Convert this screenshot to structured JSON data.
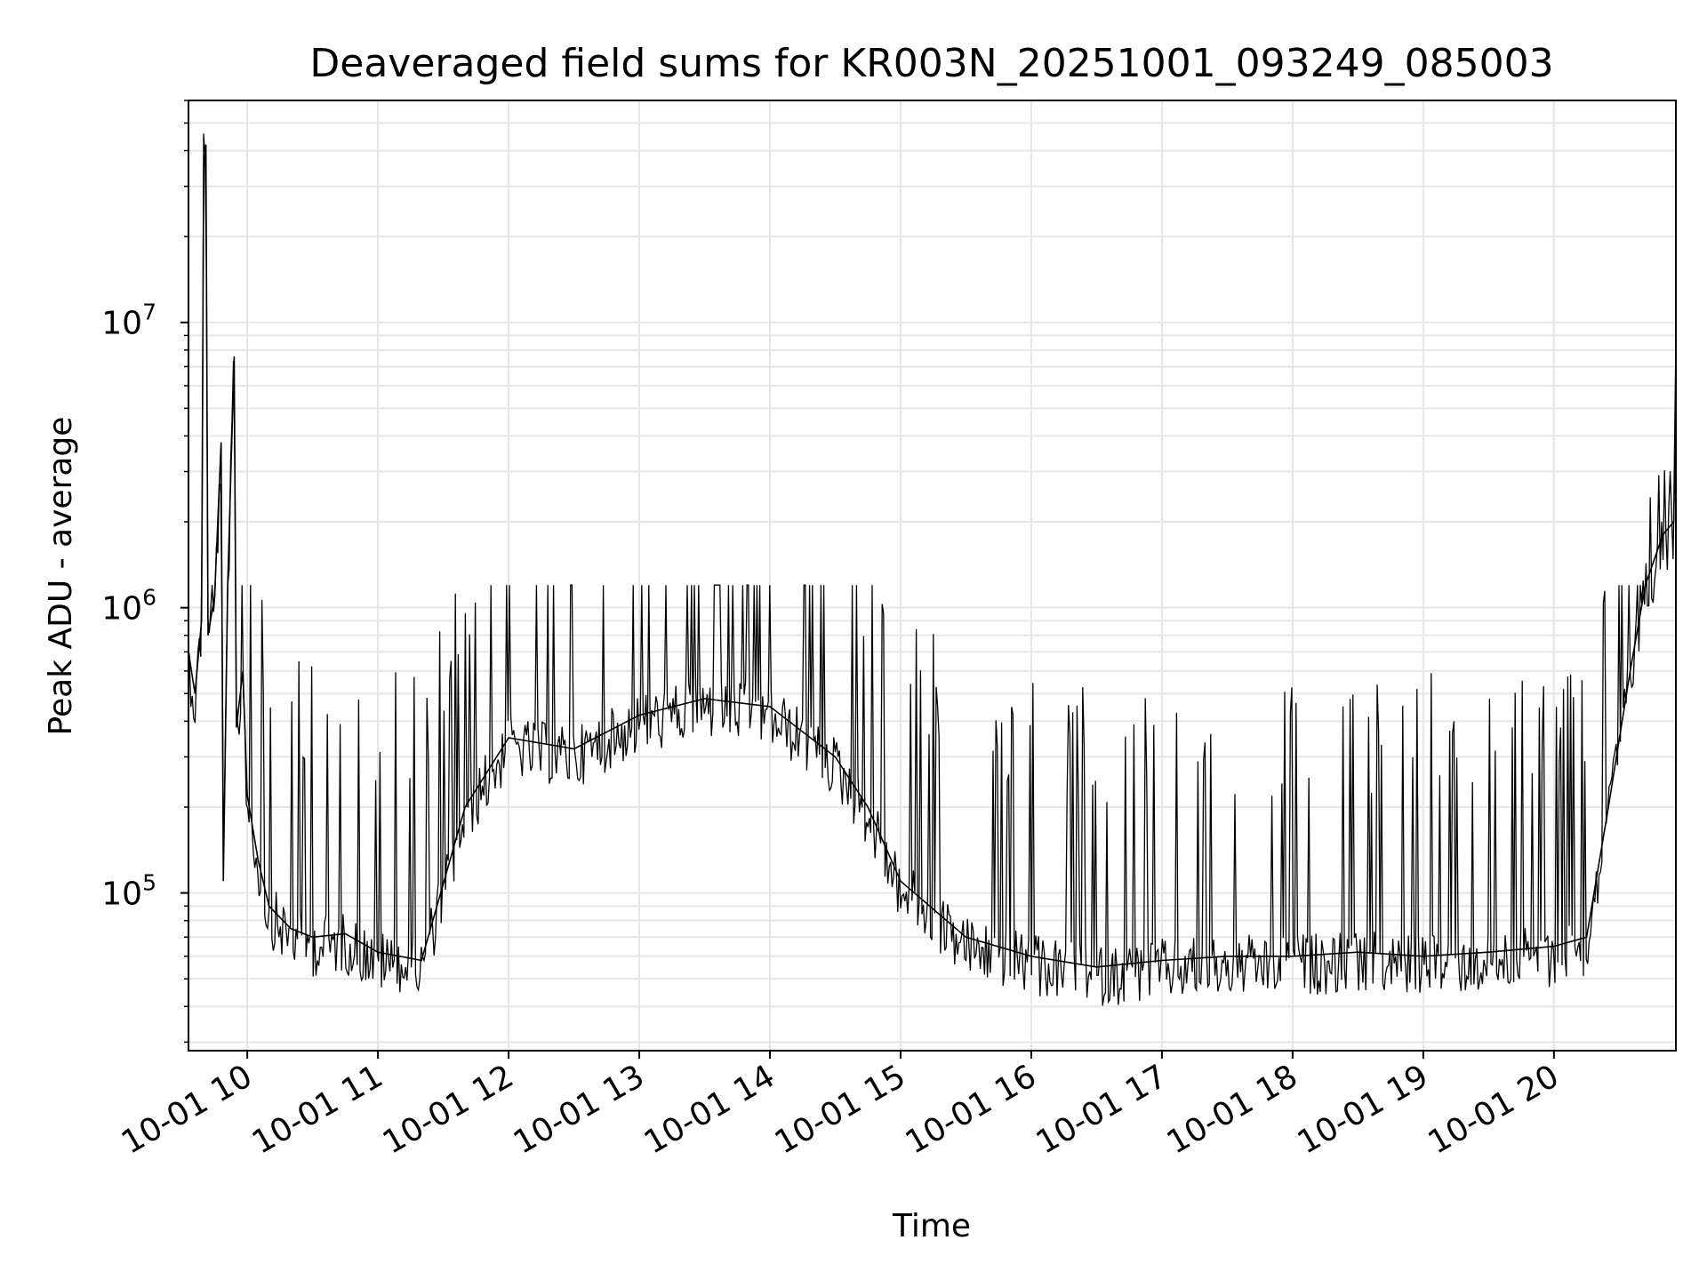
{
  "chart_data": {
    "type": "line",
    "title": "Deaveraged field sums for KR003N_20251001_093249_085003",
    "xlabel": "Time",
    "ylabel": "Peak ADU - average",
    "yscale": "log",
    "ylim": [
      28000,
      60000000
    ],
    "xlim": [
      "2025-10-01 09:33",
      "2025-10-01 20:56"
    ],
    "grid": true,
    "line_color": "#000000",
    "x_ticks": [
      {
        "label": "10-01 10",
        "time": "2025-10-01 10:00"
      },
      {
        "label": "10-01 11",
        "time": "2025-10-01 11:00"
      },
      {
        "label": "10-01 12",
        "time": "2025-10-01 12:00"
      },
      {
        "label": "10-01 13",
        "time": "2025-10-01 13:00"
      },
      {
        "label": "10-01 14",
        "time": "2025-10-01 14:00"
      },
      {
        "label": "10-01 15",
        "time": "2025-10-01 15:00"
      },
      {
        "label": "10-01 16",
        "time": "2025-10-01 16:00"
      },
      {
        "label": "10-01 17",
        "time": "2025-10-01 17:00"
      },
      {
        "label": "10-01 18",
        "time": "2025-10-01 18:00"
      },
      {
        "label": "10-01 19",
        "time": "2025-10-01 19:00"
      },
      {
        "label": "10-01 20",
        "time": "2025-10-01 20:00"
      }
    ],
    "y_ticks": [
      {
        "base": "10",
        "exp": "5",
        "value": 100000
      },
      {
        "base": "10",
        "exp": "6",
        "value": 1000000
      },
      {
        "base": "10",
        "exp": "7",
        "value": 10000000
      }
    ],
    "series": [
      {
        "points": [
          [
            "2025-10-01 09:33",
            700000
          ],
          [
            "2025-10-01 09:36",
            500000
          ],
          [
            "2025-10-01 09:39",
            900000
          ],
          [
            "2025-10-01 09:40",
            35000000
          ],
          [
            "2025-10-01 09:41",
            42000000
          ],
          [
            "2025-10-01 09:42",
            800000
          ],
          [
            "2025-10-01 09:45",
            1100000
          ],
          [
            "2025-10-01 09:48",
            3800000
          ],
          [
            "2025-10-01 09:49",
            110000
          ],
          [
            "2025-10-01 09:51",
            1200000
          ],
          [
            "2025-10-01 09:54",
            7600000
          ],
          [
            "2025-10-01 09:55",
            380000
          ],
          [
            "2025-10-01 09:58",
            600000
          ],
          [
            "2025-10-01 10:00",
            220000
          ],
          [
            "2025-10-01 10:05",
            130000
          ],
          [
            "2025-10-01 10:10",
            90000
          ],
          [
            "2025-10-01 10:20",
            75000
          ],
          [
            "2025-10-01 10:30",
            70000
          ],
          [
            "2025-10-01 10:45",
            72000
          ],
          [
            "2025-10-01 11:00",
            62000
          ],
          [
            "2025-10-01 11:20",
            58000
          ],
          [
            "2025-10-01 11:40",
            200000
          ],
          [
            "2025-10-01 12:00",
            350000
          ],
          [
            "2025-10-01 12:30",
            320000
          ],
          [
            "2025-10-01 13:00",
            420000
          ],
          [
            "2025-10-01 13:30",
            480000
          ],
          [
            "2025-10-01 14:00",
            450000
          ],
          [
            "2025-10-01 14:30",
            300000
          ],
          [
            "2025-10-01 14:45",
            200000
          ],
          [
            "2025-10-01 15:00",
            110000
          ],
          [
            "2025-10-01 15:30",
            70000
          ],
          [
            "2025-10-01 16:00",
            60000
          ],
          [
            "2025-10-01 16:30",
            55000
          ],
          [
            "2025-10-01 17:00",
            58000
          ],
          [
            "2025-10-01 17:30",
            60000
          ],
          [
            "2025-10-01 18:00",
            60000
          ],
          [
            "2025-10-01 18:30",
            62000
          ],
          [
            "2025-10-01 19:00",
            60000
          ],
          [
            "2025-10-01 19:30",
            62000
          ],
          [
            "2025-10-01 20:00",
            65000
          ],
          [
            "2025-10-01 20:15",
            70000
          ],
          [
            "2025-10-01 20:25",
            200000
          ],
          [
            "2025-10-01 20:35",
            600000
          ],
          [
            "2025-10-01 20:42",
            1200000
          ],
          [
            "2025-10-01 20:50",
            1800000
          ],
          [
            "2025-10-01 20:55",
            2000000
          ],
          [
            "2025-10-01 20:56",
            8000000
          ]
        ]
      }
    ]
  }
}
